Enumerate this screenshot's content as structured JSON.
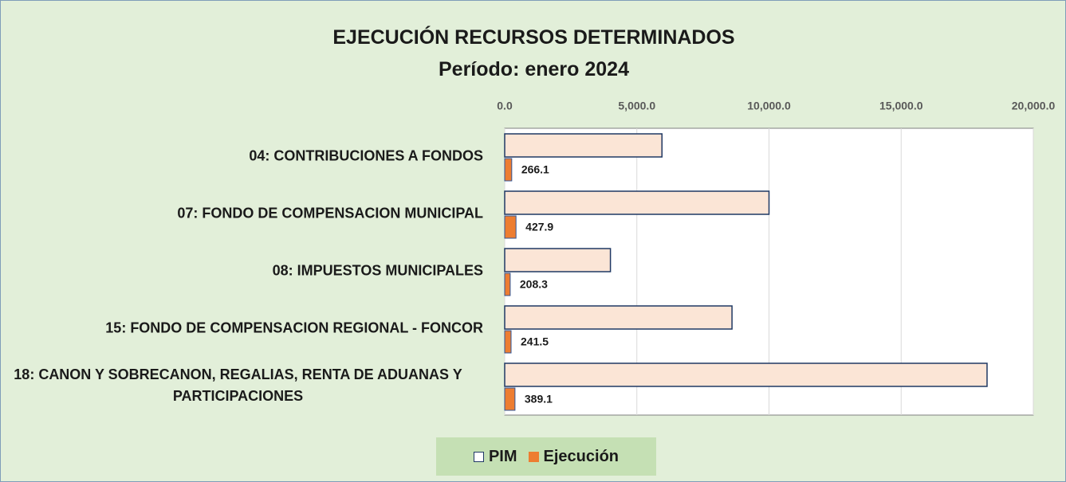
{
  "chart_data": {
    "type": "bar",
    "orientation": "horizontal",
    "title": "EJECUCIÓN RECURSOS DETERMINADOS",
    "subtitle": "Período: enero 2024",
    "categories": [
      "04: CONTRIBUCIONES A FONDOS",
      "07: FONDO DE COMPENSACION MUNICIPAL",
      "08: IMPUESTOS MUNICIPALES",
      "15: FONDO DE COMPENSACION REGIONAL - FONCOR",
      "18: CANON Y SOBRECANON, REGALIAS, RENTA DE ADUANAS Y PARTICIPACIONES"
    ],
    "series": [
      {
        "name": "PIM",
        "color": "#fbe5d6",
        "values": [
          5950,
          10000,
          4000,
          8600,
          18250
        ]
      },
      {
        "name": "Ejecución",
        "color": "#ed7d31",
        "values": [
          266.1,
          427.9,
          208.3,
          241.5,
          389.1
        ]
      }
    ],
    "xlim": [
      0,
      20000
    ],
    "xticks": [
      {
        "value": 0,
        "label": "0.0"
      },
      {
        "value": 5000,
        "label": "5,000.0"
      },
      {
        "value": 10000,
        "label": "10,000.0"
      },
      {
        "value": 15000,
        "label": "15,000.0"
      },
      {
        "value": 20000,
        "label": "20,000.0"
      }
    ],
    "grid": true,
    "legend": "bottom"
  }
}
